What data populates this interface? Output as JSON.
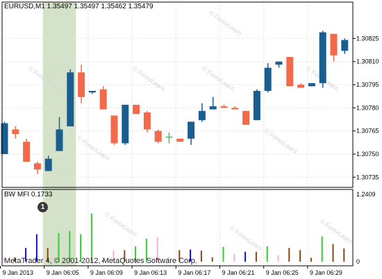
{
  "symbol_info": "EURUSD,M1  1.35497 1.35497 1.35462 1.35479",
  "indicator_info": "BW MFI 0.1733",
  "copyright": "MetaTrader 4, © 2001-2012, MetaQuotes Software Corp.",
  "marker_label": "1",
  "watermark_text": "© ForexLearn",
  "colors": {
    "bull": "#1a5e8f",
    "bear": "#f26a4a",
    "doji": "#2ecc40",
    "highlight": "#d3e2c9",
    "grid": "#e4e4e4",
    "mfi_green": "#33cc33",
    "mfi_brown": "#8b4513",
    "mfi_blue": "#1010c8",
    "mfi_pink": "#f4b6c8"
  },
  "chart_data": [
    {
      "type": "candlestick",
      "ylim": [
        1.30732,
        1.30845
      ],
      "y_ticks": [
        "1.30825",
        "1.30810",
        "1.30795",
        "1.30780",
        "1.30765",
        "1.30750",
        "1.30735"
      ],
      "candles": [
        {
          "dir": "bull",
          "o": 1.3075,
          "h": 1.30771,
          "l": 1.3075,
          "c": 1.3077
        },
        {
          "dir": "bear",
          "o": 1.30766,
          "h": 1.30768,
          "l": 1.3076,
          "c": 1.30763
        },
        {
          "dir": "bear",
          "o": 1.30758,
          "h": 1.3076,
          "l": 1.30745,
          "c": 1.30745
        },
        {
          "dir": "bear",
          "o": 1.30744,
          "h": 1.30745,
          "l": 1.30737,
          "c": 1.3074
        },
        {
          "dir": "bull",
          "o": 1.30739,
          "h": 1.30749,
          "l": 1.30739,
          "c": 1.30747
        },
        {
          "dir": "bull",
          "o": 1.30752,
          "h": 1.30774,
          "l": 1.30752,
          "c": 1.30766
        },
        {
          "dir": "bull",
          "o": 1.30768,
          "h": 1.30805,
          "l": 1.30768,
          "c": 1.30803
        },
        {
          "dir": "bear",
          "o": 1.30803,
          "h": 1.30808,
          "l": 1.30783,
          "c": 1.30787
        },
        {
          "dir": "bull",
          "o": 1.3079,
          "h": 1.30791,
          "l": 1.30789,
          "c": 1.30791
        },
        {
          "dir": "bear",
          "o": 1.30792,
          "h": 1.30794,
          "l": 1.30779,
          "c": 1.30779
        },
        {
          "dir": "bear",
          "o": 1.30775,
          "h": 1.30775,
          "l": 1.30756,
          "c": 1.30757
        },
        {
          "dir": "bull",
          "o": 1.30757,
          "h": 1.30782,
          "l": 1.30756,
          "c": 1.30782
        },
        {
          "dir": "bear",
          "o": 1.30782,
          "h": 1.30782,
          "l": 1.30776,
          "c": 1.30776
        },
        {
          "dir": "bear",
          "o": 1.30777,
          "h": 1.30778,
          "l": 1.30764,
          "c": 1.30766
        },
        {
          "dir": "bear",
          "o": 1.30765,
          "h": 1.30766,
          "l": 1.30757,
          "c": 1.30758
        },
        {
          "dir": "doji",
          "o": 1.30761,
          "h": 1.30764,
          "l": 1.30757,
          "c": 1.30761
        },
        {
          "dir": "bear",
          "o": 1.3076,
          "h": 1.3076,
          "l": 1.30758,
          "c": 1.30758
        },
        {
          "dir": "bull",
          "o": 1.3076,
          "h": 1.30771,
          "l": 1.30756,
          "c": 1.30771
        },
        {
          "dir": "bull",
          "o": 1.30772,
          "h": 1.30783,
          "l": 1.30771,
          "c": 1.30778
        },
        {
          "dir": "bull",
          "o": 1.30779,
          "h": 1.30787,
          "l": 1.30779,
          "c": 1.30781
        },
        {
          "dir": "bear",
          "o": 1.30781,
          "h": 1.30782,
          "l": 1.3078,
          "c": 1.3078
        },
        {
          "dir": "bear",
          "o": 1.3078,
          "h": 1.30781,
          "l": 1.30779,
          "c": 1.30779
        },
        {
          "dir": "bear",
          "o": 1.30778,
          "h": 1.30778,
          "l": 1.30769,
          "c": 1.30769
        },
        {
          "dir": "bull",
          "o": 1.30772,
          "h": 1.30792,
          "l": 1.30772,
          "c": 1.30791
        },
        {
          "dir": "bull",
          "o": 1.30791,
          "h": 1.30809,
          "l": 1.3079,
          "c": 1.30806
        },
        {
          "dir": "bull",
          "o": 1.30808,
          "h": 1.3081,
          "l": 1.30806,
          "c": 1.3081
        },
        {
          "dir": "bear",
          "o": 1.30813,
          "h": 1.30813,
          "l": 1.30794,
          "c": 1.30794
        },
        {
          "dir": "bear",
          "o": 1.30795,
          "h": 1.30796,
          "l": 1.30793,
          "c": 1.30793
        },
        {
          "dir": "bull",
          "o": 1.30794,
          "h": 1.30796,
          "l": 1.30794,
          "c": 1.30796
        },
        {
          "dir": "bull",
          "o": 1.30796,
          "h": 1.3083,
          "l": 1.30793,
          "c": 1.30829
        },
        {
          "dir": "bear",
          "o": 1.30828,
          "h": 1.30828,
          "l": 1.3081,
          "c": 1.30814
        },
        {
          "dir": "bull",
          "o": 1.30817,
          "h": 1.30825,
          "l": 1.30815,
          "c": 1.30824
        }
      ]
    },
    {
      "type": "bar",
      "title": "BW MFI",
      "ylim": [
        0,
        1.2409
      ],
      "y_ticks": [
        "1.2409",
        "0"
      ],
      "bars": [
        {
          "v": 0.07,
          "c": "pink"
        },
        {
          "v": 0.08,
          "c": "brown"
        },
        {
          "v": 0.25,
          "c": "blue"
        },
        {
          "v": 0.5,
          "c": "blue"
        },
        {
          "v": 0.25,
          "c": "brown"
        },
        {
          "v": 0.52,
          "c": "green"
        },
        {
          "v": 0.56,
          "c": "green"
        },
        {
          "v": 0.5,
          "c": "green"
        },
        {
          "v": 0.88,
          "c": "green"
        },
        {
          "v": 0.02,
          "c": "blue"
        },
        {
          "v": 0.21,
          "c": "pink"
        },
        {
          "v": 0.21,
          "c": "brown"
        },
        {
          "v": 0.28,
          "c": "green"
        },
        {
          "v": 0.42,
          "c": "green"
        },
        {
          "v": 0.45,
          "c": "pink"
        },
        {
          "v": 0.09,
          "c": "pink"
        },
        {
          "v": 0.21,
          "c": "brown"
        },
        {
          "v": 0.22,
          "c": "blue"
        },
        {
          "v": 0.2,
          "c": "brown"
        },
        {
          "v": 0.08,
          "c": "brown"
        },
        {
          "v": 0.27,
          "c": "green"
        },
        {
          "v": 0.14,
          "c": "pink"
        },
        {
          "v": 0.18,
          "c": "blue"
        },
        {
          "v": 0.18,
          "c": "brown"
        },
        {
          "v": 0.28,
          "c": "green"
        },
        {
          "v": 0.12,
          "c": "pink"
        },
        {
          "v": 0.25,
          "c": "brown"
        },
        {
          "v": 0.21,
          "c": "brown"
        },
        {
          "v": 0.07,
          "c": "brown"
        },
        {
          "v": 0.46,
          "c": "green"
        },
        {
          "v": 0.32,
          "c": "brown"
        },
        {
          "v": 0.24,
          "c": "brown"
        }
      ]
    }
  ],
  "x_axis": {
    "labels": [
      {
        "text": "9 Jan 2013",
        "idx": 0
      },
      {
        "text": "9 Jan 06:05",
        "idx": 4
      },
      {
        "text": "9 Jan 06:09",
        "idx": 8
      },
      {
        "text": "9 Jan 06:13",
        "idx": 12
      },
      {
        "text": "9 Jan 06:17",
        "idx": 16
      },
      {
        "text": "9 Jan 06:21",
        "idx": 20
      },
      {
        "text": "9 Jan 06:25",
        "idx": 24
      },
      {
        "text": "9 Jan 06:29",
        "idx": 28
      }
    ]
  },
  "highlight": {
    "from_idx": 4,
    "to_idx": 6
  }
}
